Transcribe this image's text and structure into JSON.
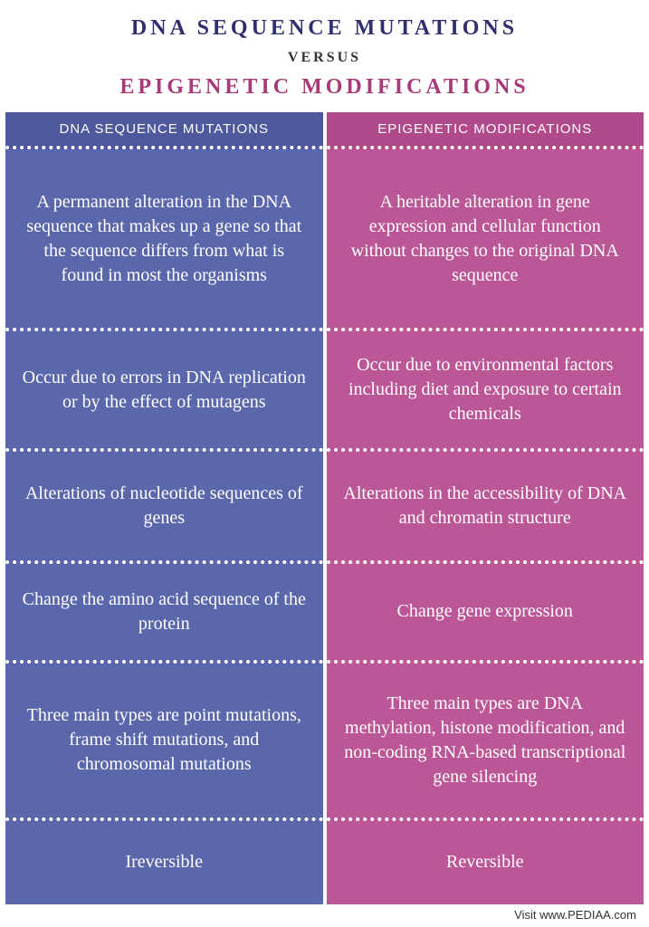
{
  "header": {
    "title_a": "DNA SEQUENCE MUTATIONS",
    "versus": "VERSUS",
    "title_b": "EPIGENETIC MODIFICATIONS"
  },
  "colors": {
    "title_a": "#2f2f6e",
    "title_b": "#a83a7a",
    "left_header_bg": "#4e599b",
    "left_cell_bg": "#5b67ab",
    "right_header_bg": "#b04a8a",
    "right_cell_bg": "#bb5796",
    "text": "#ffffff",
    "divider": "#ffffff"
  },
  "table": {
    "type": "comparison-table",
    "left": {
      "header": "DNA SEQUENCE MUTATIONS",
      "rows": [
        "A permanent alteration in the DNA sequence that makes up a gene so that the sequence differs from what is found in most the organisms",
        "Occur due to errors in DNA replication or by the effect of mutagens",
        "Alterations of nucleotide sequences of genes",
        "Change the amino acid sequence of the protein",
        "Three main types are point mutations, frame shift mutations, and chromosomal mutations",
        "Ireversible"
      ]
    },
    "right": {
      "header": "EPIGENETIC MODIFICATIONS",
      "rows": [
        "A heritable alteration in gene expression and cellular function without changes to the original DNA sequence",
        "Occur due to environmental factors including diet and exposure to certain chemicals",
        "Alterations in the accessibility of DNA and chromatin structure",
        "Change gene expression",
        "Three main types are DNA methylation, histone modification, and non-coding RNA-based transcriptional gene silencing",
        "Reversible"
      ]
    },
    "row_weights": [
      1.9,
      1.15,
      1.05,
      0.9,
      1.6,
      0.75
    ]
  },
  "footer": {
    "text": "Visit www.PEDIAA.com"
  }
}
